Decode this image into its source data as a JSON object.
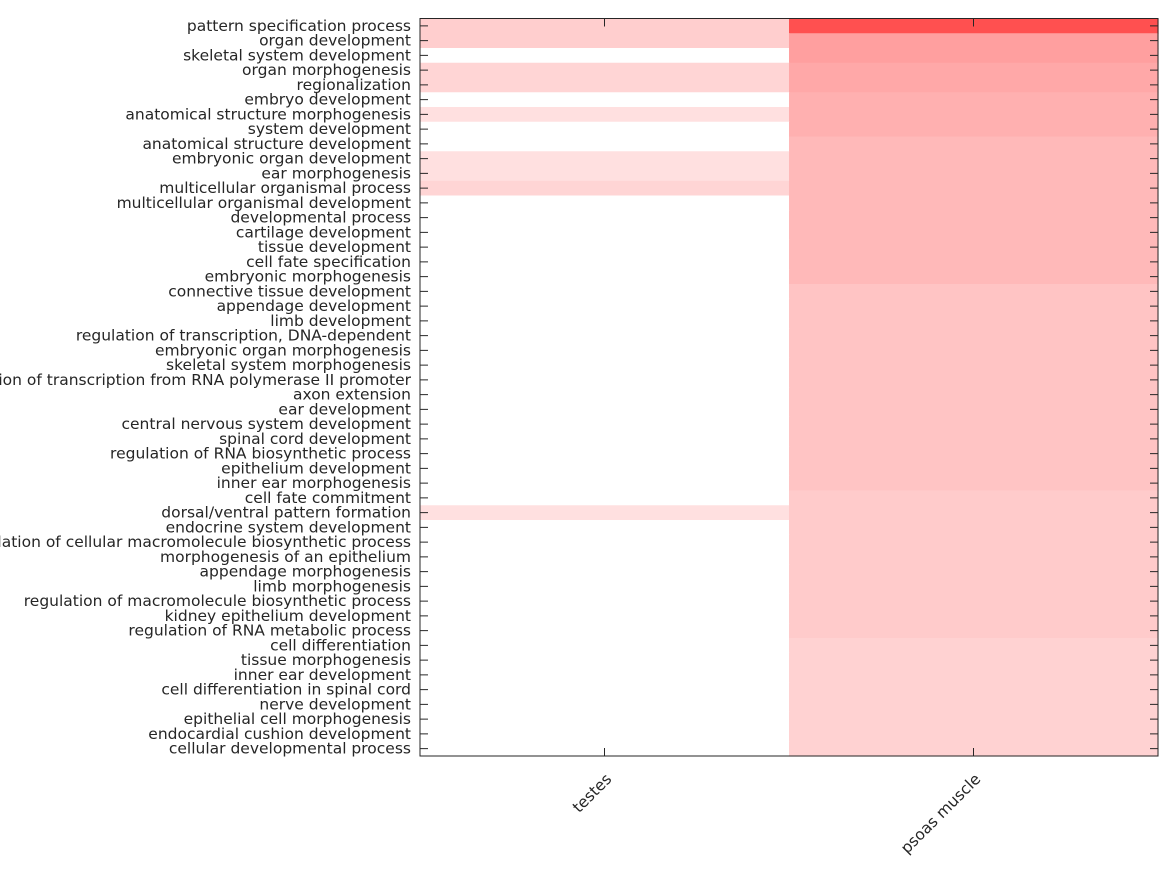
{
  "chart_data": {
    "type": "heatmap",
    "title": "",
    "xlabel": "",
    "ylabel": "",
    "columns": [
      "testes",
      "psoas muscle"
    ],
    "rows": [
      "pattern specification process",
      "organ development",
      "skeletal system development",
      "organ morphogenesis",
      "regionalization",
      "embryo development",
      "anatomical structure morphogenesis",
      "system development",
      "anatomical structure development",
      "embryonic organ development",
      "ear morphogenesis",
      "multicellular organismal process",
      "multicellular organismal development",
      "developmental process",
      "cartilage development",
      "tissue development",
      "cell fate specification",
      "embryonic morphogenesis",
      "connective tissue development",
      "appendage development",
      "limb development",
      "regulation of transcription, DNA-dependent",
      "embryonic organ morphogenesis",
      "skeletal system morphogenesis",
      "regulation of transcription from RNA polymerase II promoter",
      "axon extension",
      "ear development",
      "central nervous system development",
      "spinal cord development",
      "regulation of RNA biosynthetic process",
      "epithelium development",
      "inner ear morphogenesis",
      "cell fate commitment",
      "dorsal/ventral pattern formation",
      "endocrine system development",
      "regulation of cellular macromolecule biosynthetic process",
      "morphogenesis of an epithelium",
      "appendage morphogenesis",
      "limb morphogenesis",
      "regulation of macromolecule biosynthetic process",
      "kidney epithelium development",
      "regulation of RNA metabolic process",
      "cell differentiation",
      "tissue morphogenesis",
      "inner ear development",
      "cell differentiation in spinal cord",
      "nerve development",
      "epithelial cell morphogenesis",
      "endocardial cushion development",
      "cellular developmental process"
    ],
    "values": [
      [
        0.28,
        1.0
      ],
      [
        0.28,
        0.55
      ],
      [
        0.0,
        0.55
      ],
      [
        0.24,
        0.5
      ],
      [
        0.24,
        0.5
      ],
      [
        0.0,
        0.45
      ],
      [
        0.18,
        0.45
      ],
      [
        0.0,
        0.45
      ],
      [
        0.0,
        0.4
      ],
      [
        0.18,
        0.4
      ],
      [
        0.18,
        0.4
      ],
      [
        0.24,
        0.4
      ],
      [
        0.0,
        0.4
      ],
      [
        0.0,
        0.4
      ],
      [
        0.0,
        0.4
      ],
      [
        0.0,
        0.4
      ],
      [
        0.0,
        0.4
      ],
      [
        0.0,
        0.4
      ],
      [
        0.0,
        0.34
      ],
      [
        0.0,
        0.34
      ],
      [
        0.0,
        0.34
      ],
      [
        0.0,
        0.34
      ],
      [
        0.0,
        0.34
      ],
      [
        0.0,
        0.34
      ],
      [
        0.0,
        0.34
      ],
      [
        0.0,
        0.34
      ],
      [
        0.0,
        0.34
      ],
      [
        0.0,
        0.34
      ],
      [
        0.0,
        0.34
      ],
      [
        0.0,
        0.34
      ],
      [
        0.0,
        0.34
      ],
      [
        0.0,
        0.34
      ],
      [
        0.0,
        0.3
      ],
      [
        0.18,
        0.3
      ],
      [
        0.0,
        0.3
      ],
      [
        0.0,
        0.3
      ],
      [
        0.0,
        0.3
      ],
      [
        0.0,
        0.3
      ],
      [
        0.0,
        0.3
      ],
      [
        0.0,
        0.3
      ],
      [
        0.0,
        0.3
      ],
      [
        0.0,
        0.3
      ],
      [
        0.0,
        0.26
      ],
      [
        0.0,
        0.26
      ],
      [
        0.0,
        0.26
      ],
      [
        0.0,
        0.26
      ],
      [
        0.0,
        0.26
      ],
      [
        0.0,
        0.26
      ],
      [
        0.0,
        0.26
      ],
      [
        0.0,
        0.26
      ]
    ],
    "colormap": {
      "low": "#ffffff",
      "high": "#ff5050"
    },
    "grid": false,
    "legend": "none"
  }
}
